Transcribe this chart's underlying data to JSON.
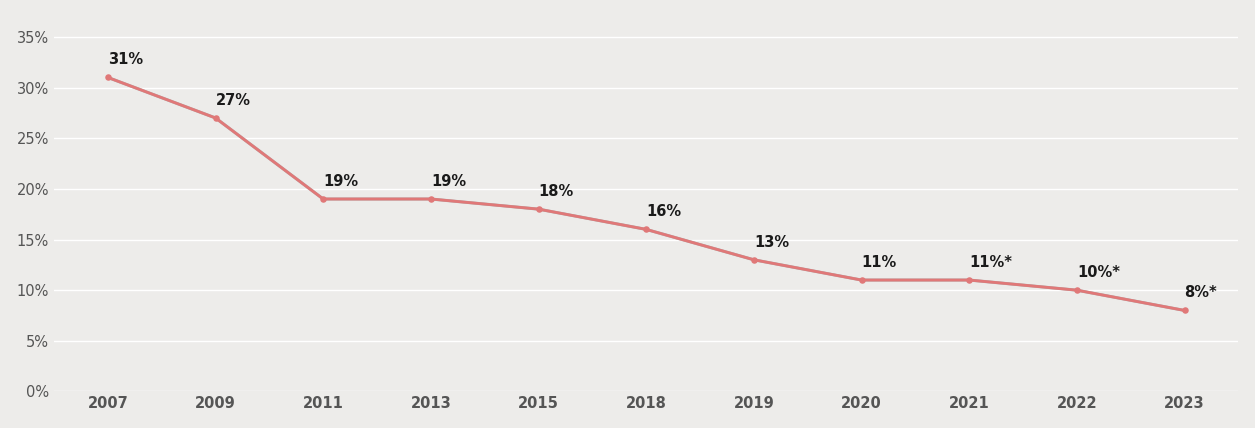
{
  "years": [
    2007,
    2009,
    2011,
    2013,
    2015,
    2018,
    2019,
    2020,
    2021,
    2022,
    2023
  ],
  "values": [
    31,
    27,
    19,
    19,
    18,
    16,
    13,
    11,
    11,
    10,
    8
  ],
  "labels": [
    "31%",
    "27%",
    "19%",
    "19%",
    "18%",
    "16%",
    "13%",
    "11%",
    "11%*",
    "10%*",
    "8%*"
  ],
  "line_color": "#E07878",
  "shadow_color": "#B0AAAA",
  "marker_color": "#E07878",
  "bg_color": "#EDECEA",
  "grid_color": "#FFFFFF",
  "label_fontsize": 10.5,
  "tick_fontsize": 10.5,
  "ylim": [
    0,
    37
  ],
  "yticks": [
    0,
    5,
    10,
    15,
    20,
    25,
    30,
    35
  ],
  "ytick_labels": [
    "0%",
    "5%",
    "10%",
    "15%",
    "20%",
    "25%",
    "30%",
    "35%"
  ]
}
